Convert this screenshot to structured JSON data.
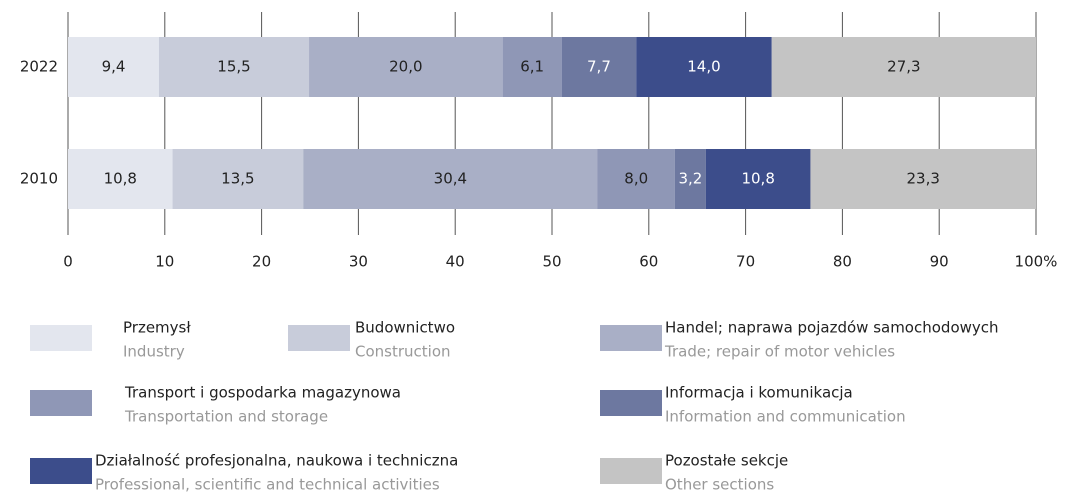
{
  "chart_data": {
    "type": "stacked-bar-horizontal",
    "categories": [
      "2022",
      "2010"
    ],
    "series": [
      {
        "name": "Przemysł",
        "name_en": "Industry",
        "color": "#e3e6ee",
        "values": [
          9.4,
          10.8
        ],
        "value_labels": [
          "9,4",
          "10,8"
        ]
      },
      {
        "name": "Budownictwo",
        "name_en": "Construction",
        "color": "#c8ccda",
        "values": [
          15.5,
          13.5
        ],
        "value_labels": [
          "15,5",
          "13,5"
        ]
      },
      {
        "name": "Handel; naprawa pojazdów samochodowych",
        "name_en": "Trade; repair of motor vehicles",
        "color": "#a9afc6",
        "values": [
          20.0,
          30.4
        ],
        "value_labels": [
          "20,0",
          "30,4"
        ]
      },
      {
        "name": "Transport i gospodarka magazynowa",
        "name_en": "Transportation and storage",
        "color": "#8f97b6",
        "values": [
          6.1,
          8.0
        ],
        "value_labels": [
          "6,1",
          "8,0"
        ]
      },
      {
        "name": "Informacja i komunikacja",
        "name_en": "Information and communication",
        "color": "#6d78a0",
        "values": [
          7.7,
          3.2
        ],
        "value_labels": [
          "7,7",
          "3,2"
        ]
      },
      {
        "name": "Działalność profesjonalna, naukowa i techniczna",
        "name_en": "Professional, scientific and technical activities",
        "color": "#3c4d8b",
        "values": [
          14.0,
          10.8
        ],
        "value_labels": [
          "14,0",
          "10,8"
        ]
      },
      {
        "name": "Pozostałe sekcje",
        "name_en": "Other sections",
        "color": "#c4c4c4",
        "values": [
          27.3,
          23.3
        ],
        "value_labels": [
          "27,3",
          "23,3"
        ]
      }
    ],
    "xlim": [
      0,
      100
    ],
    "xticks": [
      0,
      10,
      20,
      30,
      40,
      50,
      60,
      70,
      80,
      90,
      {
        "value": 100,
        "label": "100%"
      }
    ],
    "grid": true
  }
}
